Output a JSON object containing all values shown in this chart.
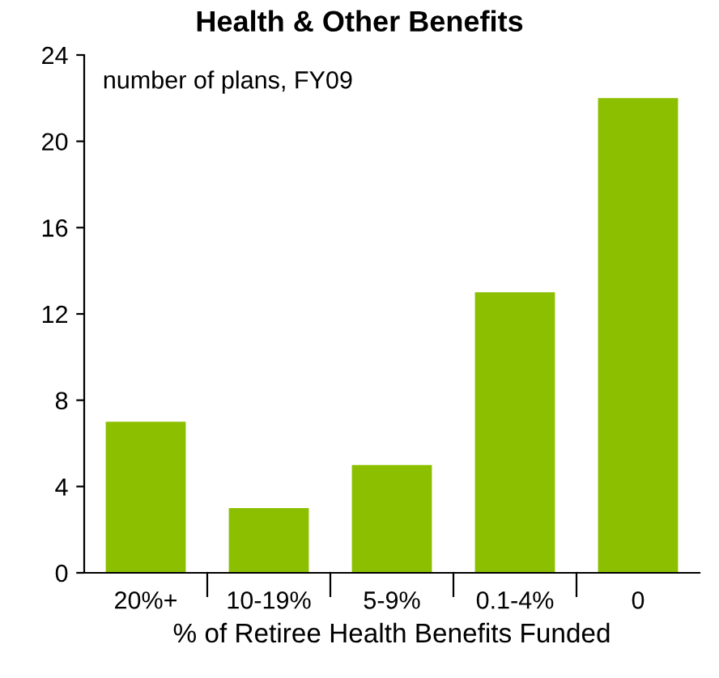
{
  "chart_data": {
    "type": "bar",
    "title": "Health & Other Benefits",
    "subtitle": "number of plans, FY09",
    "xlabel": "% of Retiree Health Benefits Funded",
    "categories": [
      "20%+",
      "10-19%",
      "5-9%",
      "0.1-4%",
      "0"
    ],
    "values": [
      7,
      3,
      5,
      13,
      22
    ],
    "color": "#8cbf00",
    "ylim": [
      0,
      24
    ],
    "yticks": [
      0,
      4,
      8,
      12,
      16,
      20,
      24
    ],
    "grid": false,
    "legend": false
  }
}
